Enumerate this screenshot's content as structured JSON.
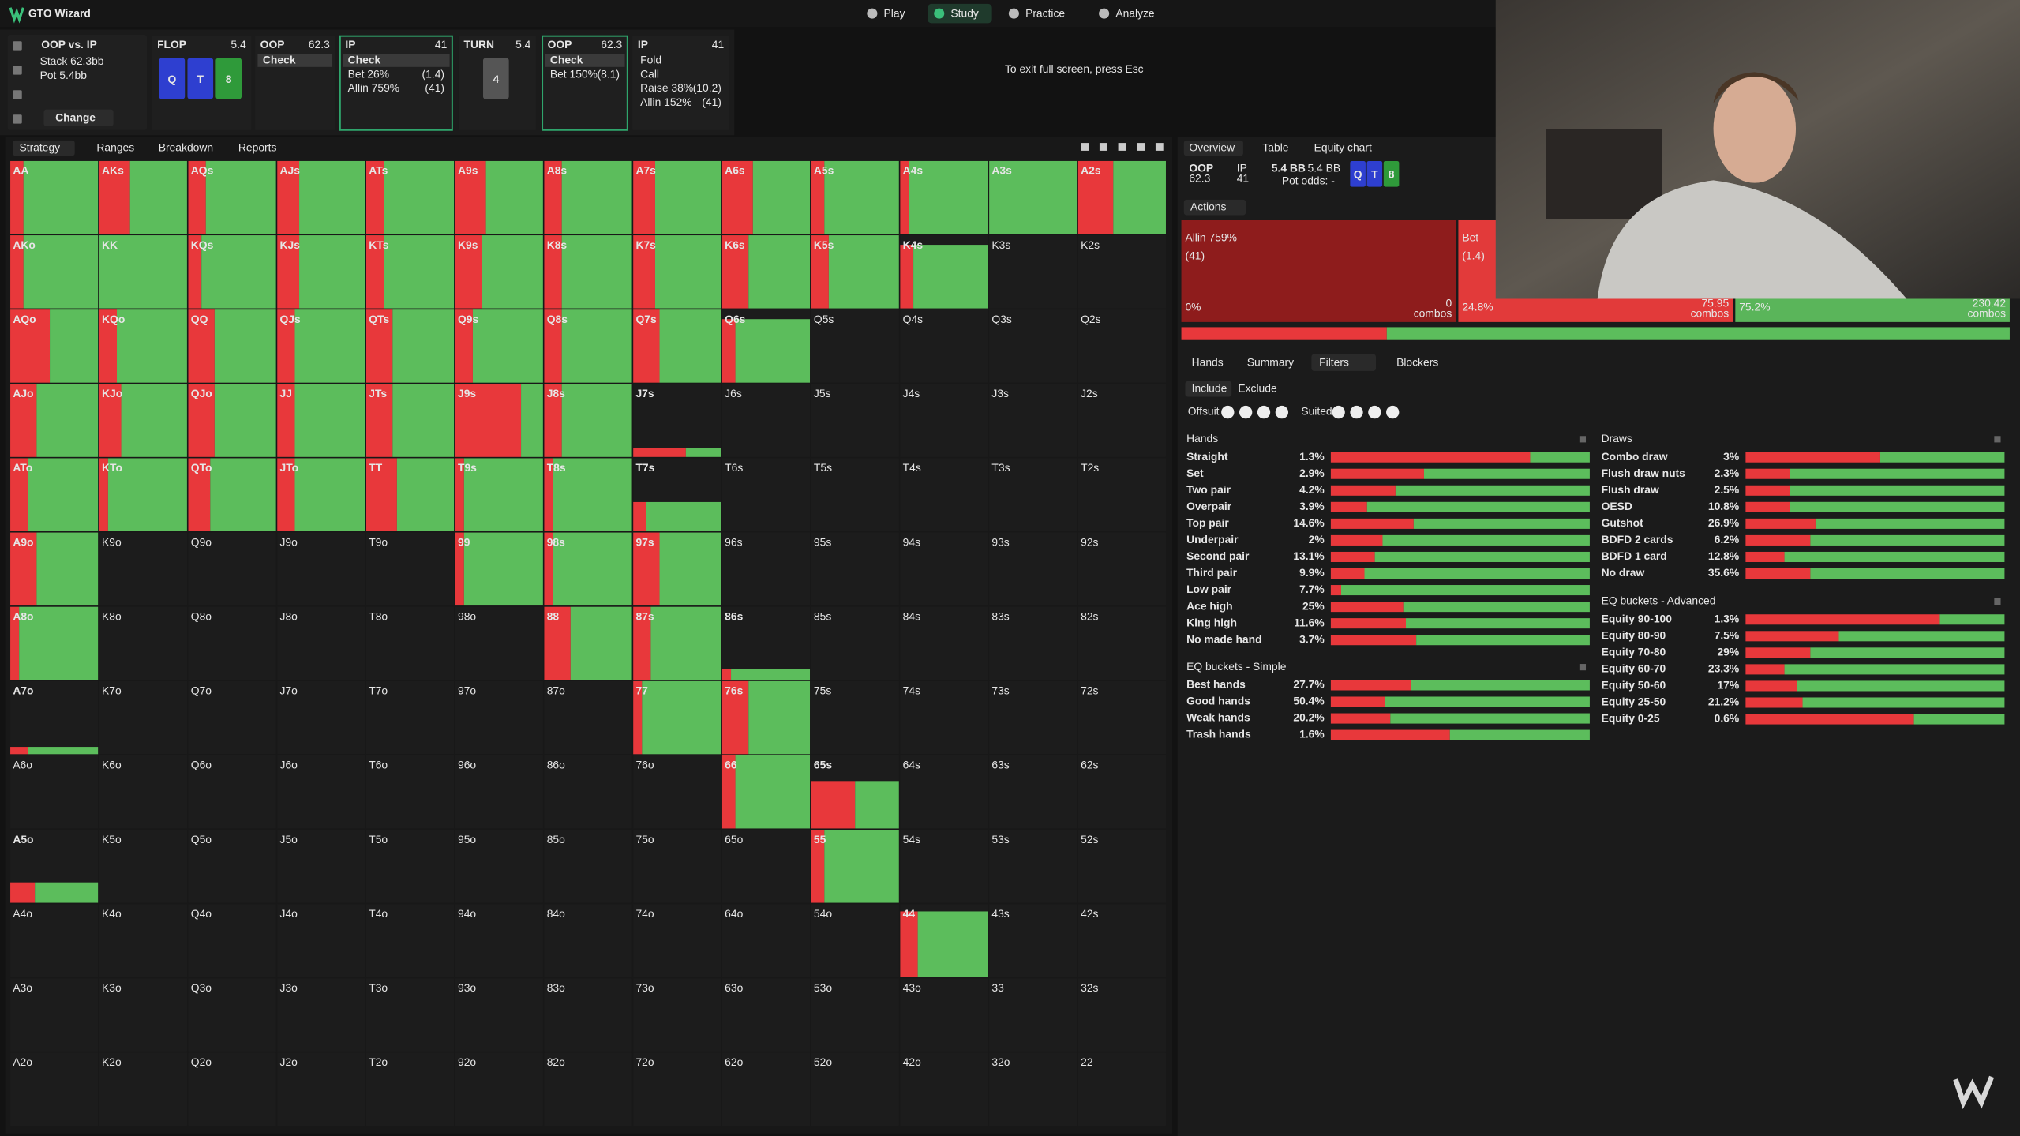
{
  "app": {
    "title": "GTO Wizard",
    "nav": [
      "Play",
      "Study",
      "Practice",
      "Analyze"
    ],
    "active_nav": 1,
    "notice": "To exit full screen, press Esc"
  },
  "history": {
    "matchup": "OOP vs. IP",
    "stack": "Stack 62.3bb",
    "pot": "Pot 5.4bb",
    "change": "Change",
    "columns": [
      {
        "player": "FLOP",
        "amount": "5.4",
        "cards": [
          {
            "rank": "Q",
            "color": "#2e3fd0"
          },
          {
            "rank": "T",
            "color": "#2e3fd0"
          },
          {
            "rank": "8",
            "color": "#2f9a3a"
          }
        ]
      },
      {
        "player": "OOP",
        "amount": "62.3",
        "chosen": 0,
        "actions": [
          {
            "label": "Check"
          }
        ]
      },
      {
        "player": "IP",
        "amount": "41",
        "selected": true,
        "chosen": 0,
        "actions": [
          {
            "label": "Check"
          },
          {
            "label": "Bet 26%",
            "size": "(1.4)"
          },
          {
            "label": "Allin 759%",
            "size": "(41)"
          }
        ]
      },
      {
        "player": "TURN",
        "amount": "5.4",
        "cards": [
          {
            "rank": "4",
            "color": "#555555"
          }
        ]
      },
      {
        "player": "OOP",
        "amount": "62.3",
        "selected": true,
        "chosen": 0,
        "actions": [
          {
            "label": "Check"
          },
          {
            "label": "Bet 150%",
            "size": "(8.1)"
          }
        ]
      },
      {
        "player": "IP",
        "amount": "41",
        "actions": [
          {
            "label": "Fold"
          },
          {
            "label": "Call"
          },
          {
            "label": "Raise 38%",
            "size": "(10.2)"
          },
          {
            "label": "Allin 152%",
            "size": "(41)"
          }
        ]
      }
    ]
  },
  "tabs": [
    "Strategy",
    "Ranges",
    "Breakdown",
    "Reports"
  ],
  "colors": {
    "allin": "#e8383b",
    "check": "#5cbd5c"
  },
  "matrix": {
    "labels": [
      [
        "AA",
        "AKs",
        "AQs",
        "AJs",
        "ATs",
        "A9s",
        "A8s",
        "A7s",
        "A6s",
        "A5s",
        "A4s",
        "A3s",
        "A2s"
      ],
      [
        "AKo",
        "KK",
        "KQs",
        "KJs",
        "KTs",
        "K9s",
        "K8s",
        "K7s",
        "K6s",
        "K5s",
        "K4s",
        "K3s",
        "K2s"
      ],
      [
        "AQo",
        "KQo",
        "QQ",
        "QJs",
        "QTs",
        "Q9s",
        "Q8s",
        "Q7s",
        "Q6s",
        "Q5s",
        "Q4s",
        "Q3s",
        "Q2s"
      ],
      [
        "AJo",
        "KJo",
        "QJo",
        "JJ",
        "JTs",
        "J9s",
        "J8s",
        "J7s",
        "J6s",
        "J5s",
        "J4s",
        "J3s",
        "J2s"
      ],
      [
        "ATo",
        "KTo",
        "QTo",
        "JTo",
        "TT",
        "T9s",
        "T8s",
        "T7s",
        "T6s",
        "T5s",
        "T4s",
        "T3s",
        "T2s"
      ],
      [
        "A9o",
        "K9o",
        "Q9o",
        "J9o",
        "T9o",
        "99",
        "98s",
        "97s",
        "96s",
        "95s",
        "94s",
        "93s",
        "92s"
      ],
      [
        "A8o",
        "K8o",
        "Q8o",
        "J8o",
        "T8o",
        "98o",
        "88",
        "87s",
        "86s",
        "85s",
        "84s",
        "83s",
        "82s"
      ],
      [
        "A7o",
        "K7o",
        "Q7o",
        "J7o",
        "T7o",
        "97o",
        "87o",
        "77",
        "76s",
        "75s",
        "74s",
        "73s",
        "72s"
      ],
      [
        "A6o",
        "K6o",
        "Q6o",
        "J6o",
        "T6o",
        "96o",
        "86o",
        "76o",
        "66",
        "65s",
        "64s",
        "63s",
        "62s"
      ],
      [
        "A5o",
        "K5o",
        "Q5o",
        "J5o",
        "T5o",
        "95o",
        "85o",
        "75o",
        "65o",
        "55",
        "54s",
        "53s",
        "52s"
      ],
      [
        "A4o",
        "K4o",
        "Q4o",
        "J4o",
        "T4o",
        "94o",
        "84o",
        "74o",
        "64o",
        "54o",
        "44",
        "43s",
        "42s"
      ],
      [
        "A3o",
        "K3o",
        "Q3o",
        "J3o",
        "T3o",
        "93o",
        "83o",
        "73o",
        "63o",
        "53o",
        "43o",
        "33",
        "32s"
      ],
      [
        "A2o",
        "K2o",
        "Q2o",
        "J2o",
        "T2o",
        "92o",
        "82o",
        "72o",
        "62o",
        "52o",
        "42o",
        "32o",
        "22"
      ]
    ],
    "weight": [
      [
        100,
        100,
        100,
        100,
        100,
        100,
        100,
        100,
        100,
        100,
        100,
        100,
        100
      ],
      [
        100,
        100,
        100,
        100,
        100,
        100,
        100,
        100,
        100,
        100,
        87,
        0,
        0
      ],
      [
        100,
        100,
        100,
        100,
        100,
        100,
        100,
        100,
        87,
        0,
        0,
        0,
        0
      ],
      [
        100,
        100,
        100,
        100,
        100,
        100,
        100,
        12,
        0,
        0,
        0,
        0,
        0
      ],
      [
        100,
        100,
        100,
        100,
        100,
        100,
        100,
        40,
        0,
        0,
        0,
        0,
        0
      ],
      [
        100,
        0,
        0,
        0,
        0,
        100,
        100,
        100,
        0,
        0,
        0,
        0,
        0
      ],
      [
        100,
        0,
        0,
        0,
        0,
        0,
        100,
        100,
        15,
        0,
        0,
        0,
        0
      ],
      [
        10,
        0,
        0,
        0,
        0,
        0,
        0,
        100,
        100,
        0,
        0,
        0,
        0
      ],
      [
        0,
        0,
        0,
        0,
        0,
        0,
        0,
        0,
        100,
        65,
        0,
        0,
        0
      ],
      [
        28,
        0,
        0,
        0,
        0,
        0,
        0,
        0,
        0,
        100,
        0,
        0,
        0
      ],
      [
        0,
        0,
        0,
        0,
        0,
        0,
        0,
        0,
        0,
        0,
        90,
        0,
        0
      ],
      [
        0,
        0,
        0,
        0,
        0,
        0,
        0,
        0,
        0,
        0,
        0,
        0,
        0
      ],
      [
        0,
        0,
        0,
        0,
        0,
        0,
        0,
        0,
        0,
        0,
        0,
        0,
        0
      ]
    ],
    "allin": [
      [
        15,
        35,
        20,
        25,
        20,
        35,
        20,
        25,
        35,
        15,
        10,
        0,
        40
      ],
      [
        15,
        0,
        15,
        25,
        20,
        30,
        20,
        25,
        30,
        20,
        15,
        0,
        0
      ],
      [
        45,
        20,
        30,
        20,
        30,
        20,
        20,
        30,
        15,
        0,
        0,
        0,
        0
      ],
      [
        30,
        25,
        30,
        20,
        30,
        75,
        20,
        60,
        0,
        0,
        0,
        0,
        0
      ],
      [
        20,
        10,
        25,
        20,
        35,
        10,
        10,
        15,
        0,
        0,
        0,
        0,
        0
      ],
      [
        30,
        0,
        0,
        0,
        0,
        10,
        10,
        30,
        0,
        0,
        0,
        0,
        0
      ],
      [
        10,
        0,
        0,
        0,
        0,
        0,
        30,
        20,
        10,
        0,
        0,
        0,
        0
      ],
      [
        20,
        0,
        0,
        0,
        0,
        0,
        0,
        10,
        30,
        0,
        0,
        0,
        0
      ],
      [
        0,
        0,
        0,
        0,
        0,
        0,
        0,
        0,
        15,
        50,
        0,
        0,
        0
      ],
      [
        28,
        0,
        0,
        0,
        0,
        0,
        0,
        0,
        0,
        15,
        0,
        0,
        0
      ],
      [
        0,
        0,
        0,
        0,
        0,
        0,
        0,
        0,
        0,
        0,
        20,
        0,
        0
      ],
      [
        0,
        0,
        0,
        0,
        0,
        0,
        0,
        0,
        0,
        0,
        0,
        0,
        0
      ],
      [
        0,
        0,
        0,
        0,
        0,
        0,
        0,
        0,
        0,
        0,
        0,
        0,
        0
      ]
    ]
  },
  "overview": {
    "tabs": [
      "Overview",
      "Table",
      "Equity chart"
    ],
    "oop": "OOP",
    "oop_stack": "62.3",
    "ip": "IP",
    "ip_stack": "41",
    "pot1": "5.4 BB",
    "pot2": "5.4 BB",
    "pot_odds": "Pot odds: -",
    "cards": [
      {
        "rank": "Q",
        "color": "#2e3fd0"
      },
      {
        "rank": "T",
        "color": "#2e3fd0"
      },
      {
        "rank": "8",
        "color": "#2f9a3a"
      }
    ],
    "actions_menu": "Actions",
    "combos_label": "combos",
    "actions": [
      {
        "name": "Allin 759%",
        "size": "(41)",
        "freq": 0,
        "freq_label": "0%",
        "combos": 0,
        "color": "#8e1c1c"
      },
      {
        "name": "Bet",
        "size": "(1.4)",
        "freq": 24.8,
        "freq_label": "24.8%",
        "combos": 75.95,
        "color": "#e23a3a"
      },
      {
        "freq": 75.2,
        "freq_label": "75.2%",
        "combos": 230.42,
        "color": "#5ab55a"
      }
    ]
  },
  "filters": {
    "tabs": [
      "Hands",
      "Summary",
      "Filters",
      "Blockers"
    ],
    "active_tab": 2,
    "modes": [
      "Include",
      "Exclude"
    ],
    "offsuit": "Offsuit",
    "suited": "Suited",
    "groups": [
      {
        "title": "Hands",
        "rows": [
          {
            "name": "Straight",
            "share": "1.3%",
            "allin": 77
          },
          {
            "name": "Set",
            "share": "2.9%",
            "allin": 36
          },
          {
            "name": "Two pair",
            "share": "4.2%",
            "allin": 25
          },
          {
            "name": "Overpair",
            "share": "3.9%",
            "allin": 14
          },
          {
            "name": "Top pair",
            "share": "14.6%",
            "allin": 32
          },
          {
            "name": "Underpair",
            "share": "2%",
            "allin": 20
          },
          {
            "name": "Second pair",
            "share": "13.1%",
            "allin": 17
          },
          {
            "name": "Third pair",
            "share": "9.9%",
            "allin": 13
          },
          {
            "name": "Low pair",
            "share": "7.7%",
            "allin": 4
          },
          {
            "name": "Ace high",
            "share": "25%",
            "allin": 28
          },
          {
            "name": "King high",
            "share": "11.6%",
            "allin": 29
          },
          {
            "name": "No made hand",
            "share": "3.7%",
            "allin": 33
          }
        ]
      },
      {
        "title": "EQ buckets - Simple",
        "rows": [
          {
            "name": "Best hands",
            "share": "27.7%",
            "allin": 31
          },
          {
            "name": "Good hands",
            "share": "50.4%",
            "allin": 21
          },
          {
            "name": "Weak hands",
            "share": "20.2%",
            "allin": 23
          },
          {
            "name": "Trash hands",
            "share": "1.6%",
            "allin": 46
          }
        ]
      },
      {
        "title": "Draws",
        "rows": [
          {
            "name": "Combo draw",
            "share": "3%",
            "allin": 52
          },
          {
            "name": "Flush draw nuts",
            "share": "2.3%",
            "allin": 17
          },
          {
            "name": "Flush draw",
            "share": "2.5%",
            "allin": 17
          },
          {
            "name": "OESD",
            "share": "10.8%",
            "allin": 17
          },
          {
            "name": "Gutshot",
            "share": "26.9%",
            "allin": 27
          },
          {
            "name": "BDFD 2 cards",
            "share": "6.2%",
            "allin": 25
          },
          {
            "name": "BDFD 1 card",
            "share": "12.8%",
            "allin": 15
          },
          {
            "name": "No draw",
            "share": "35.6%",
            "allin": 25
          }
        ]
      },
      {
        "title": "EQ buckets - Advanced",
        "rows": [
          {
            "name": "Equity 90-100",
            "share": "1.3%",
            "allin": 75
          },
          {
            "name": "Equity 80-90",
            "share": "7.5%",
            "allin": 36
          },
          {
            "name": "Equity 70-80",
            "share": "29%",
            "allin": 25
          },
          {
            "name": "Equity 60-70",
            "share": "23.3%",
            "allin": 15
          },
          {
            "name": "Equity 50-60",
            "share": "17%",
            "allin": 20
          },
          {
            "name": "Equity 25-50",
            "share": "21.2%",
            "allin": 22
          },
          {
            "name": "Equity 0-25",
            "share": "0.6%",
            "allin": 65
          }
        ]
      }
    ]
  }
}
